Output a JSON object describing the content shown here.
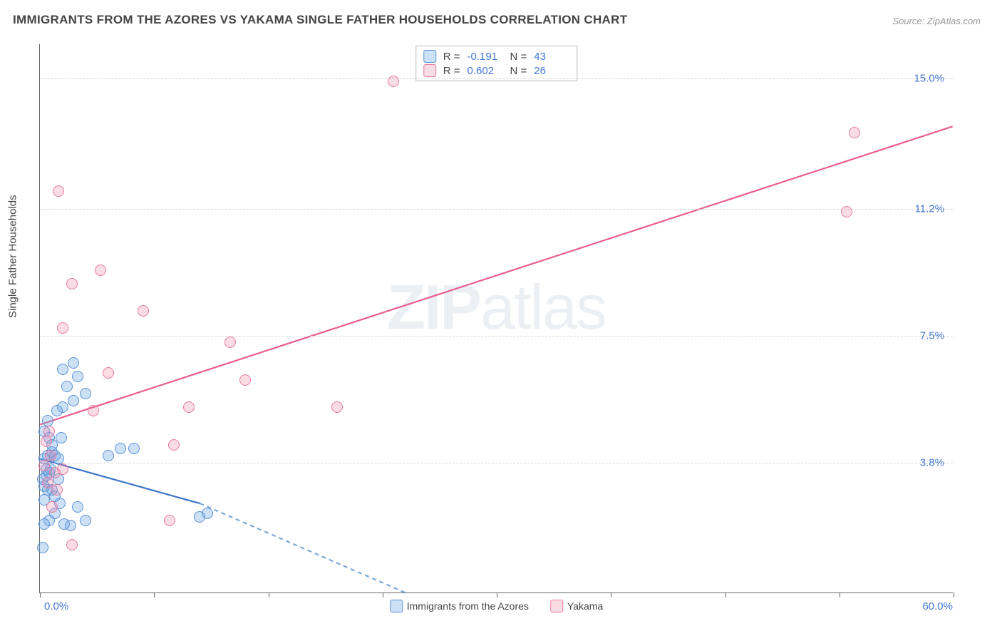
{
  "title": "IMMIGRANTS FROM THE AZORES VS YAKAMA SINGLE FATHER HOUSEHOLDS CORRELATION CHART",
  "source": "Source: ZipAtlas.com",
  "watermark": "ZIPatlas",
  "chart": {
    "type": "scatter",
    "background_color": "#ffffff",
    "grid_color": "#d8d8d8",
    "axis_color": "#666666",
    "xlim": [
      0,
      60
    ],
    "ylim": [
      0,
      16
    ],
    "xtick_positions_pct": [
      0,
      12.5,
      25,
      37.5,
      50,
      62.5,
      75,
      87.5,
      100
    ],
    "y_gridlines": [
      3.8,
      7.5,
      11.2,
      15.0
    ],
    "y_labels": [
      "3.8%",
      "7.5%",
      "11.2%",
      "15.0%"
    ],
    "xlabel_min": "0.0%",
    "xlabel_max": "60.0%",
    "y_axis_title": "Single Father Households",
    "series": [
      {
        "name": "Immigrants from the Azores",
        "fill_color": "rgba(110,165,230,0.35)",
        "stroke_color": "#5b93d6",
        "line_color": "#3a73c8",
        "line_dash_color": "#7aa8d8",
        "R": "-0.191",
        "N": "43",
        "trend": {
          "x1": 0,
          "y1": 3.9,
          "x2": 10.5,
          "y2": 2.6,
          "dash_x2": 24,
          "dash_y2": 0
        },
        "points": [
          [
            0.2,
            3.3
          ],
          [
            0.3,
            3.1
          ],
          [
            0.4,
            3.4
          ],
          [
            0.3,
            2.7
          ],
          [
            0.5,
            3.0
          ],
          [
            0.4,
            3.6
          ],
          [
            0.6,
            3.5
          ],
          [
            0.5,
            4.0
          ],
          [
            0.8,
            4.1
          ],
          [
            0.6,
            4.5
          ],
          [
            1.0,
            4.0
          ],
          [
            1.2,
            3.9
          ],
          [
            0.3,
            4.7
          ],
          [
            0.8,
            3.0
          ],
          [
            1.0,
            2.8
          ],
          [
            1.3,
            2.6
          ],
          [
            1.0,
            2.3
          ],
          [
            1.6,
            2.0
          ],
          [
            2.0,
            1.95
          ],
          [
            2.5,
            2.5
          ],
          [
            3.0,
            2.1
          ],
          [
            0.2,
            1.3
          ],
          [
            0.6,
            2.1
          ],
          [
            4.5,
            4.0
          ],
          [
            5.3,
            4.2
          ],
          [
            6.2,
            4.2
          ],
          [
            1.5,
            5.4
          ],
          [
            2.2,
            5.6
          ],
          [
            1.1,
            5.3
          ],
          [
            3.0,
            5.8
          ],
          [
            1.8,
            6.0
          ],
          [
            2.5,
            6.3
          ],
          [
            1.5,
            6.5
          ],
          [
            2.2,
            6.7
          ],
          [
            11.0,
            2.3
          ],
          [
            10.5,
            2.2
          ],
          [
            0.3,
            3.9
          ],
          [
            0.7,
            3.6
          ],
          [
            1.2,
            3.3
          ],
          [
            0.8,
            4.3
          ],
          [
            1.4,
            4.5
          ],
          [
            0.3,
            2.0
          ],
          [
            0.5,
            5.0
          ]
        ]
      },
      {
        "name": "Yakama",
        "fill_color": "rgba(240,140,170,0.30)",
        "stroke_color": "#e87ba0",
        "line_color": "#e85d8f",
        "R": "0.602",
        "N": "26",
        "trend": {
          "x1": 0,
          "y1": 4.9,
          "x2": 60,
          "y2": 13.6
        },
        "points": [
          [
            0.5,
            3.2
          ],
          [
            1.0,
            3.5
          ],
          [
            0.7,
            4.0
          ],
          [
            1.5,
            3.6
          ],
          [
            0.8,
            2.5
          ],
          [
            2.1,
            1.4
          ],
          [
            8.5,
            2.1
          ],
          [
            8.8,
            4.3
          ],
          [
            4.5,
            6.4
          ],
          [
            3.5,
            5.3
          ],
          [
            9.8,
            5.4
          ],
          [
            13.5,
            6.2
          ],
          [
            19.5,
            5.4
          ],
          [
            12.5,
            7.3
          ],
          [
            6.8,
            8.2
          ],
          [
            1.5,
            7.7
          ],
          [
            2.1,
            9.0
          ],
          [
            4.0,
            9.4
          ],
          [
            1.2,
            11.7
          ],
          [
            23.2,
            14.9
          ],
          [
            53.0,
            11.1
          ],
          [
            53.5,
            13.4
          ],
          [
            0.6,
            4.7
          ],
          [
            1.1,
            3.0
          ],
          [
            0.4,
            4.4
          ],
          [
            0.3,
            3.7
          ]
        ]
      }
    ]
  },
  "legend_bottom": [
    {
      "label": "Immigrants from the Azores"
    },
    {
      "label": "Yakama"
    }
  ]
}
